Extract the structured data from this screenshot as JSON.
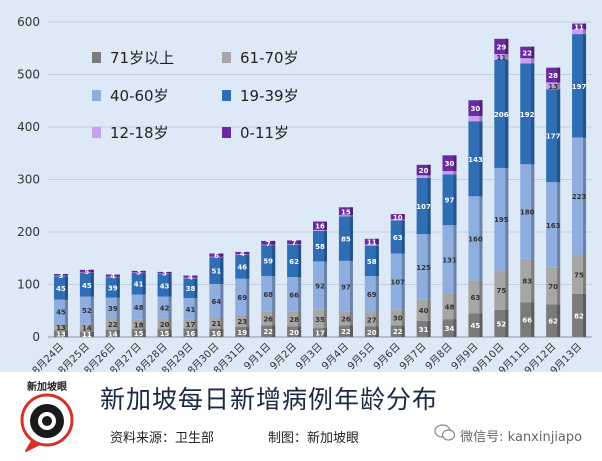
{
  "chart_data": {
    "type": "stacked-bar",
    "title": "新加坡每日新增病例年龄分布",
    "xlabel": "",
    "ylabel": "",
    "ylim": [
      0,
      600
    ],
    "yticks": [
      0,
      100,
      200,
      300,
      400,
      500,
      600
    ],
    "grid": true,
    "categories": [
      "8月24日",
      "8月25日",
      "8月26日",
      "8月27日",
      "8月28日",
      "8月29日",
      "8月30日",
      "8月31日",
      "9月1日",
      "9月2日",
      "9月3日",
      "9月4日",
      "9月5日",
      "9月6日",
      "9月7日",
      "9月8日",
      "9月9日",
      "9月10日",
      "9月11日",
      "9月12日",
      "9月13日"
    ],
    "series": [
      {
        "name": "71岁以上",
        "color": "#7b7b7b",
        "values": [
          13,
          11,
          14,
          15,
          15,
          16,
          16,
          19,
          22,
          20,
          17,
          22,
          20,
          22,
          31,
          34,
          45,
          52,
          66,
          62,
          82
        ],
        "labels": [
          "13",
          "11",
          "14",
          "15",
          "15",
          "16",
          "16",
          "19",
          "22",
          "20",
          "17",
          "22",
          "20",
          "22",
          "31",
          "34",
          "45",
          "52",
          "66",
          "62",
          "82"
        ]
      },
      {
        "name": "61-70岁",
        "color": "#a6a6a6",
        "values": [
          13,
          14,
          22,
          18,
          20,
          17,
          21,
          23,
          26,
          28,
          35,
          26,
          27,
          30,
          40,
          48,
          63,
          75,
          83,
          70,
          75
        ],
        "labels": [
          "13",
          "14",
          "22",
          "18",
          "20",
          "17",
          "21",
          "23",
          "26",
          "28",
          "35",
          "26",
          "27",
          "30",
          "40",
          "48",
          "63",
          "75",
          "83",
          "70",
          "75"
        ]
      },
      {
        "name": "40-60岁",
        "color": "#8eaee0",
        "values": [
          45,
          52,
          39,
          48,
          42,
          41,
          64,
          69,
          68,
          66,
          92,
          97,
          69,
          107,
          125,
          131,
          160,
          195,
          180,
          163,
          223
        ],
        "labels": [
          "45",
          "52",
          "39",
          "48",
          "42",
          "41",
          "64",
          "69",
          "68",
          "66",
          "92",
          "97",
          "69",
          "107",
          "125",
          "131",
          "160",
          "195",
          "180",
          "163",
          "223"
        ]
      },
      {
        "name": "19-39岁",
        "color": "#2f6eb5",
        "values": [
          45,
          45,
          39,
          41,
          43,
          38,
          51,
          46,
          59,
          62,
          58,
          85,
          58,
          63,
          107,
          97,
          143,
          206,
          192,
          177,
          197
        ],
        "labels": [
          "45",
          "45",
          "39",
          "41",
          "43",
          "38",
          "51",
          "46",
          "59",
          "62",
          "58",
          "85",
          "58",
          "63",
          "107",
          "97",
          "143",
          "206",
          "192",
          "177",
          "197"
        ]
      },
      {
        "name": "12-18岁",
        "color": "#c9a0f0",
        "values": [
          1,
          1,
          1,
          1,
          1,
          1,
          1,
          1,
          1,
          1,
          2,
          2,
          2,
          2,
          5,
          6,
          10,
          11,
          10,
          13,
          9
        ],
        "labels": [
          "",
          "",
          "",
          "",
          "",
          "",
          "",
          "",
          "",
          "",
          "",
          "",
          "",
          "",
          "",
          "",
          "",
          "11",
          "",
          "13",
          ""
        ]
      },
      {
        "name": "0-11岁",
        "color": "#6a2b9e",
        "values": [
          3,
          5,
          4,
          3,
          3,
          4,
          6,
          4,
          7,
          7,
          16,
          15,
          11,
          10,
          20,
          30,
          30,
          29,
          22,
          28,
          11
        ],
        "labels": [
          "3",
          "5",
          "4",
          "3",
          "3",
          "4",
          "6",
          "4",
          "7",
          "7",
          "16",
          "15",
          "11",
          "10",
          "20",
          "30",
          "30",
          "29",
          "22",
          "28",
          "11"
        ]
      }
    ]
  },
  "footer": {
    "title": "新加坡每日新增病例年龄分布",
    "source": "资料来源：卫生部",
    "maker": "制图：新加坡眼",
    "logo_text": "新加坡眼",
    "wechat": "微信号: kanxinjiapo"
  }
}
